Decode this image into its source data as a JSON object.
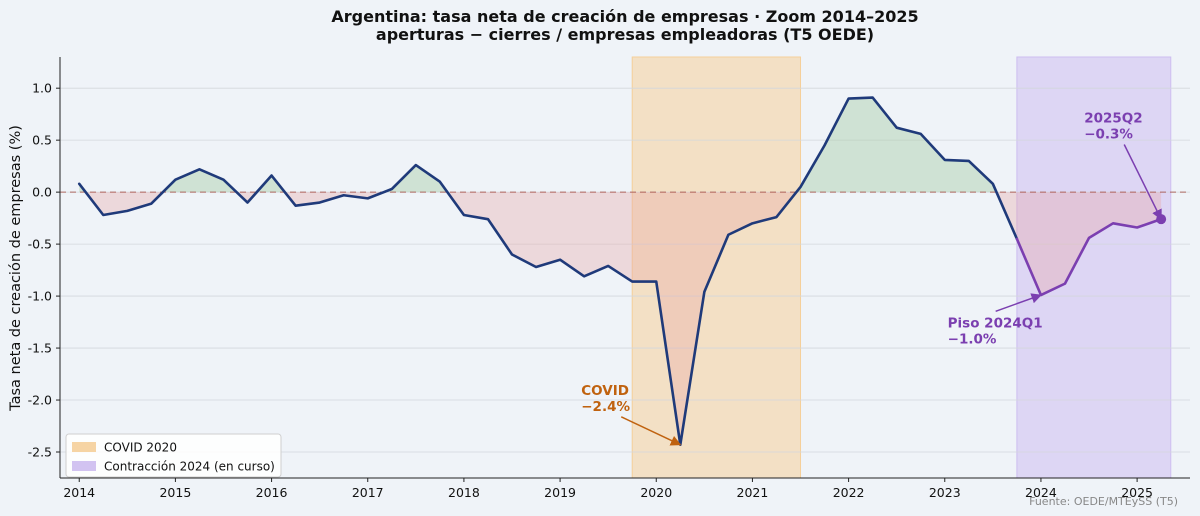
{
  "chart_data": {
    "type": "line",
    "title": "Argentina: tasa neta de creación de empresas · Zoom 2014–2025",
    "subtitle": "aperturas − cierres / empresas empleadoras (T5 OEDE)",
    "ylabel": "Tasa neta de creación de empresas (%)",
    "xlabel": "",
    "source": "Fuente: OEDE/MTEySS (T5)",
    "ylim": [
      -2.75,
      1.3
    ],
    "xlim": [
      2013.8,
      2025.55
    ],
    "yticks": [
      1.0,
      0.5,
      0.0,
      -0.5,
      -1.0,
      -1.5,
      -2.0,
      -2.5
    ],
    "ytick_labels": [
      "1.0",
      "0.5",
      "0.0",
      "-0.5",
      "-1.0",
      "-1.5",
      "-2.0",
      "-2.5"
    ],
    "xticks": [
      2014,
      2015,
      2016,
      2017,
      2018,
      2019,
      2020,
      2021,
      2022,
      2023,
      2024,
      2025
    ],
    "xtick_labels": [
      "2014",
      "2015",
      "2016",
      "2017",
      "2018",
      "2019",
      "2020",
      "2021",
      "2022",
      "2023",
      "2024",
      "2025"
    ],
    "grid": "horizontal",
    "zero_line": 0,
    "series": [
      {
        "color": "#1f3a7a",
        "points": [
          [
            2014.0,
            0.08
          ],
          [
            2014.25,
            -0.22
          ],
          [
            2014.5,
            -0.18
          ],
          [
            2014.75,
            -0.11
          ],
          [
            2015.0,
            0.12
          ],
          [
            2015.25,
            0.22
          ],
          [
            2015.5,
            0.12
          ],
          [
            2015.75,
            -0.1
          ],
          [
            2016.0,
            0.16
          ],
          [
            2016.25,
            -0.13
          ],
          [
            2016.5,
            -0.1
          ],
          [
            2016.75,
            -0.03
          ],
          [
            2017.0,
            -0.06
          ],
          [
            2017.25,
            0.03
          ],
          [
            2017.5,
            0.26
          ],
          [
            2017.75,
            0.1
          ],
          [
            2018.0,
            -0.22
          ],
          [
            2018.25,
            -0.26
          ],
          [
            2018.5,
            -0.6
          ],
          [
            2018.75,
            -0.72
          ],
          [
            2019.0,
            -0.65
          ],
          [
            2019.25,
            -0.81
          ],
          [
            2019.5,
            -0.71
          ],
          [
            2019.75,
            -0.86
          ],
          [
            2020.0,
            -0.86
          ],
          [
            2020.25,
            -2.43
          ],
          [
            2020.5,
            -0.96
          ],
          [
            2020.75,
            -0.41
          ],
          [
            2021.0,
            -0.3
          ],
          [
            2021.25,
            -0.24
          ],
          [
            2021.5,
            0.05
          ],
          [
            2021.75,
            0.45
          ],
          [
            2022.0,
            0.9
          ],
          [
            2022.25,
            0.91
          ],
          [
            2022.5,
            0.62
          ],
          [
            2022.75,
            0.56
          ],
          [
            2023.0,
            0.31
          ],
          [
            2023.25,
            0.3
          ],
          [
            2023.5,
            0.08
          ],
          [
            2023.75,
            -0.45
          ]
        ]
      },
      {
        "color": "#7b3fb0",
        "points": [
          [
            2023.75,
            -0.45
          ],
          [
            2024.0,
            -0.99
          ],
          [
            2024.25,
            -0.88
          ],
          [
            2024.5,
            -0.44
          ],
          [
            2024.75,
            -0.3
          ],
          [
            2025.0,
            -0.34
          ],
          [
            2025.25,
            -0.26
          ]
        ]
      }
    ],
    "fill_positive_color": "#a8cfa8",
    "fill_negative_color": "#e8a7a7",
    "shaded_regions": [
      {
        "label": "COVID 2020",
        "x0": 2019.75,
        "x1": 2021.5,
        "color": "#f5cf9a"
      },
      {
        "label": "Contracción 2024 (en curso)",
        "x0": 2023.75,
        "x1": 2025.35,
        "color": "#cdbdf0"
      }
    ],
    "legend_position": "lower-left",
    "annotations": [
      {
        "lines": [
          "COVID",
          "−2.4%"
        ],
        "x": 2020.25,
        "y": -2.43,
        "text_x": 2019.22,
        "text_y": -1.95,
        "color": "#c0620f"
      },
      {
        "lines": [
          "Piso 2024Q1",
          "−1.0%"
        ],
        "x": 2024.0,
        "y": -0.99,
        "text_x": 2023.03,
        "text_y": -1.3,
        "color": "#7b3fb0"
      },
      {
        "lines": [
          "2025Q2",
          "−0.3%"
        ],
        "x": 2025.25,
        "y": -0.26,
        "text_x": 2024.45,
        "text_y": 0.67,
        "color": "#7b3fb0"
      }
    ],
    "end_marker": {
      "x": 2025.25,
      "y": -0.26,
      "color": "#7b3fb0"
    }
  }
}
